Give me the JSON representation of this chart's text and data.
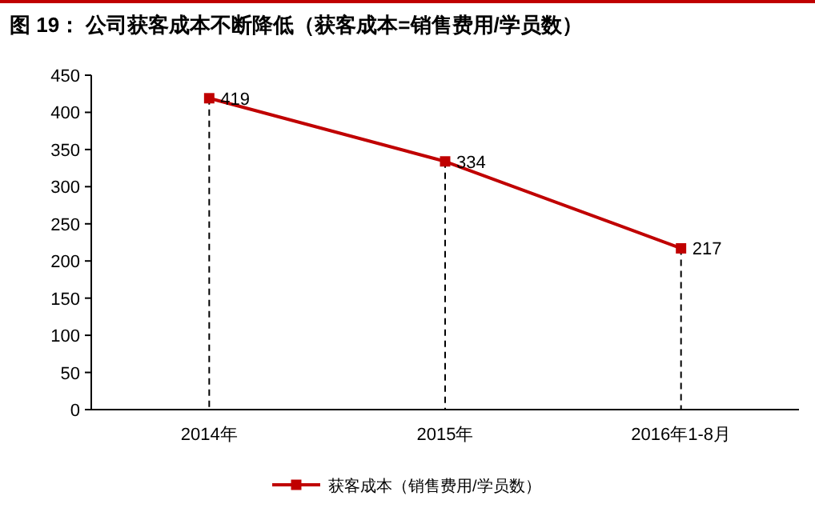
{
  "chart_data": {
    "type": "line",
    "title": "图 19：  公司获客成本不断降低（获客成本=销售费用/学员数）",
    "categories": [
      "2014年",
      "2015年",
      "2016年1-8月"
    ],
    "series": [
      {
        "name": "获客成本（销售费用/学员数）",
        "color": "#c00000",
        "values": [
          419,
          334,
          217
        ]
      }
    ],
    "ylim": [
      0,
      450
    ],
    "yticks": [
      0,
      50,
      100,
      150,
      200,
      250,
      300,
      350,
      400,
      450
    ],
    "ref_lines": [
      {
        "axis": "x",
        "value": "2014年",
        "color": "#000000",
        "line_style": "dashed"
      },
      {
        "axis": "x",
        "value": "2015年",
        "color": "#000000",
        "line_style": "dashed"
      },
      {
        "axis": "x",
        "value": "2016年1-8月",
        "color": "#000000",
        "line_style": "dashed"
      }
    ],
    "data_labels": true,
    "marker": "square",
    "line_style": "solid",
    "grid": false,
    "legend": "bottom"
  }
}
